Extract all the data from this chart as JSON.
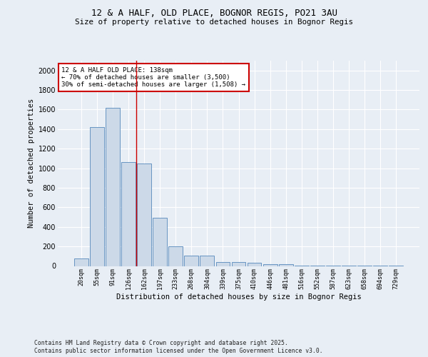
{
  "title1": "12 & A HALF, OLD PLACE, BOGNOR REGIS, PO21 3AU",
  "title2": "Size of property relative to detached houses in Bognor Regis",
  "xlabel": "Distribution of detached houses by size in Bognor Regis",
  "ylabel": "Number of detached properties",
  "bar_labels": [
    "20sqm",
    "55sqm",
    "91sqm",
    "126sqm",
    "162sqm",
    "197sqm",
    "233sqm",
    "268sqm",
    "304sqm",
    "339sqm",
    "375sqm",
    "410sqm",
    "446sqm",
    "481sqm",
    "516sqm",
    "552sqm",
    "587sqm",
    "623sqm",
    "658sqm",
    "694sqm",
    "729sqm"
  ],
  "bar_values": [
    80,
    1420,
    1620,
    1060,
    1050,
    490,
    200,
    105,
    105,
    40,
    40,
    30,
    20,
    20,
    5,
    5,
    3,
    3,
    2,
    2,
    2
  ],
  "bar_color": "#ccd9e8",
  "bar_edge_color": "#5588bb",
  "vline_x": 3.5,
  "vline_color": "#cc0000",
  "annotation_text": "12 & A HALF OLD PLACE: 138sqm\n← 70% of detached houses are smaller (3,500)\n30% of semi-detached houses are larger (1,508) →",
  "annotation_box_color": "white",
  "annotation_box_edge_color": "#cc0000",
  "ylim": [
    0,
    2100
  ],
  "yticks": [
    0,
    200,
    400,
    600,
    800,
    1000,
    1200,
    1400,
    1600,
    1800,
    2000
  ],
  "footer1": "Contains HM Land Registry data © Crown copyright and database right 2025.",
  "footer2": "Contains public sector information licensed under the Open Government Licence v3.0.",
  "bg_color": "#e8eef5",
  "plot_bg_color": "#e8eef5",
  "grid_color": "#ffffff"
}
